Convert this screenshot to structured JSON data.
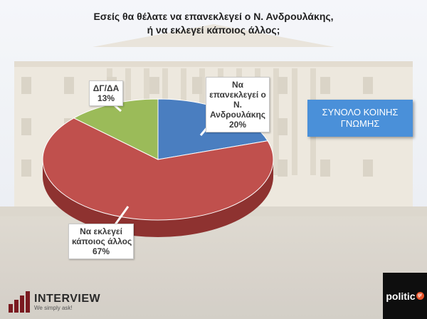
{
  "title_line1": "Εσείς θα θέλατε να επανεκλεγεί ο Ν. Ανδρουλάκης,",
  "title_line2": "ή να εκλεγεί κάποιος άλλος;",
  "summary_box": {
    "line1": "ΣΥΝΟΛΟ ΚΟΙΝΗΣ",
    "line2": "ΓΝΩΜΗΣ"
  },
  "chart_data": {
    "type": "pie",
    "title": "Εσείς θα θέλατε να επανεκλεγεί ο Ν. Ανδρουλάκης, ή να εκλεγεί κάποιος άλλος;",
    "categories": [
      "Να επανεκλεγεί ο Ν. Ανδρουλάκης",
      "Να εκλεγεί κάποιος άλλος",
      "ΔΓ/ΔΑ"
    ],
    "values": [
      20,
      67,
      13
    ],
    "unit": "%",
    "colors": [
      "#4a7ec0",
      "#c0504d",
      "#9bbb59"
    ],
    "style": "3d"
  },
  "labels": [
    {
      "lines": [
        "Να",
        "επανεκλεγεί ο",
        "Ν.",
        "Ανδρουλάκης"
      ],
      "value": "20%"
    },
    {
      "lines": [
        "Να εκλεγεί",
        "κάποιος άλλος"
      ],
      "value": "67%"
    },
    {
      "lines": [
        "ΔΓ/ΔΑ"
      ],
      "value": "13%"
    }
  ],
  "logos": {
    "interview_name": "INTERVIEW",
    "interview_slogan": "We simply ask!",
    "politic_name": "politic",
    "politic_suffix": "gr"
  }
}
